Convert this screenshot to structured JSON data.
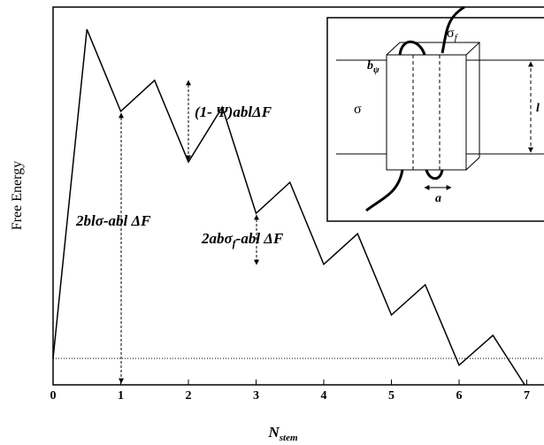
{
  "chart_data": {
    "type": "line",
    "ylabel": "Free Energy",
    "xlabel": "N",
    "xlabel_sub": "stem",
    "x": [
      0,
      0.5,
      1,
      1.5,
      2,
      2.5,
      3,
      3.5,
      4,
      4.5,
      5,
      5.5,
      6,
      6.5,
      6.97
    ],
    "series": [
      {
        "color": "#000000",
        "values": [
          7.0,
          94.1,
          72.4,
          80.6,
          59.0,
          73.5,
          45.4,
          53.6,
          31.9,
          40.0,
          18.5,
          26.5,
          5.2,
          13.1,
          0
        ]
      }
    ],
    "baseline": 7.0,
    "xlim": [
      0,
      7.25
    ],
    "ylim": [
      0,
      100
    ],
    "xticks": [
      0,
      1,
      2,
      3,
      4,
      5,
      6,
      7
    ],
    "annotations": {
      "a1": "(1- Ψ)ablΔF",
      "a2": "2blσ-abl  ΔF",
      "a3_main": "2abσ",
      "a3_sub": "f",
      "a3_rest": "-abl  ΔF"
    },
    "inset": {
      "sigma_f": "σ",
      "sigma_f_sub": "f",
      "b": "b",
      "b_sub": "ψ",
      "sigma": "σ",
      "l": "l",
      "a": "a"
    }
  }
}
